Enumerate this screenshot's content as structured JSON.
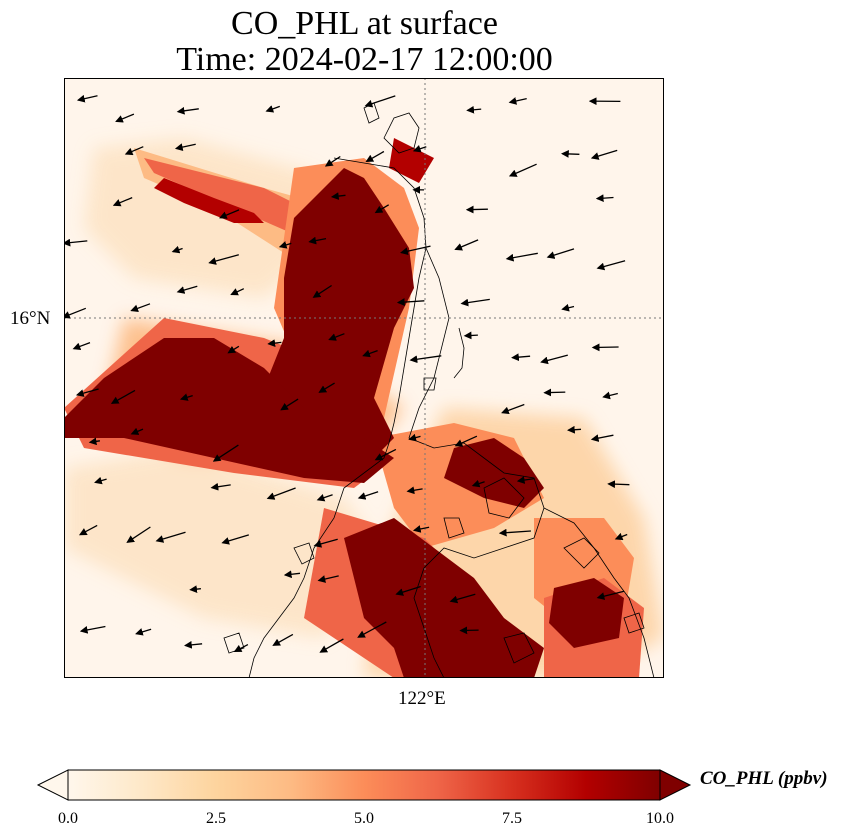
{
  "title": {
    "line1": "CO_PHL at surface",
    "line2": "Time: 2024-02-17 12:00:00"
  },
  "axes": {
    "lat_label": "16°N",
    "lon_label": "122°E"
  },
  "colorbar": {
    "label": "CO_PHL (ppbv)",
    "min": 0.0,
    "max": 10.0,
    "extend": "both",
    "colormap": "OrRd",
    "ticks": [
      "0.0",
      "2.5",
      "5.0",
      "7.5",
      "10.0"
    ],
    "colors": [
      "#fff7ec",
      "#fee8c8",
      "#fdd49e",
      "#fdbb84",
      "#fc8d59",
      "#ef6548",
      "#d7301f",
      "#b30000",
      "#7f0000"
    ]
  },
  "map": {
    "gridlines": "dotted",
    "wind_vectors": true,
    "coastlines": true
  }
}
